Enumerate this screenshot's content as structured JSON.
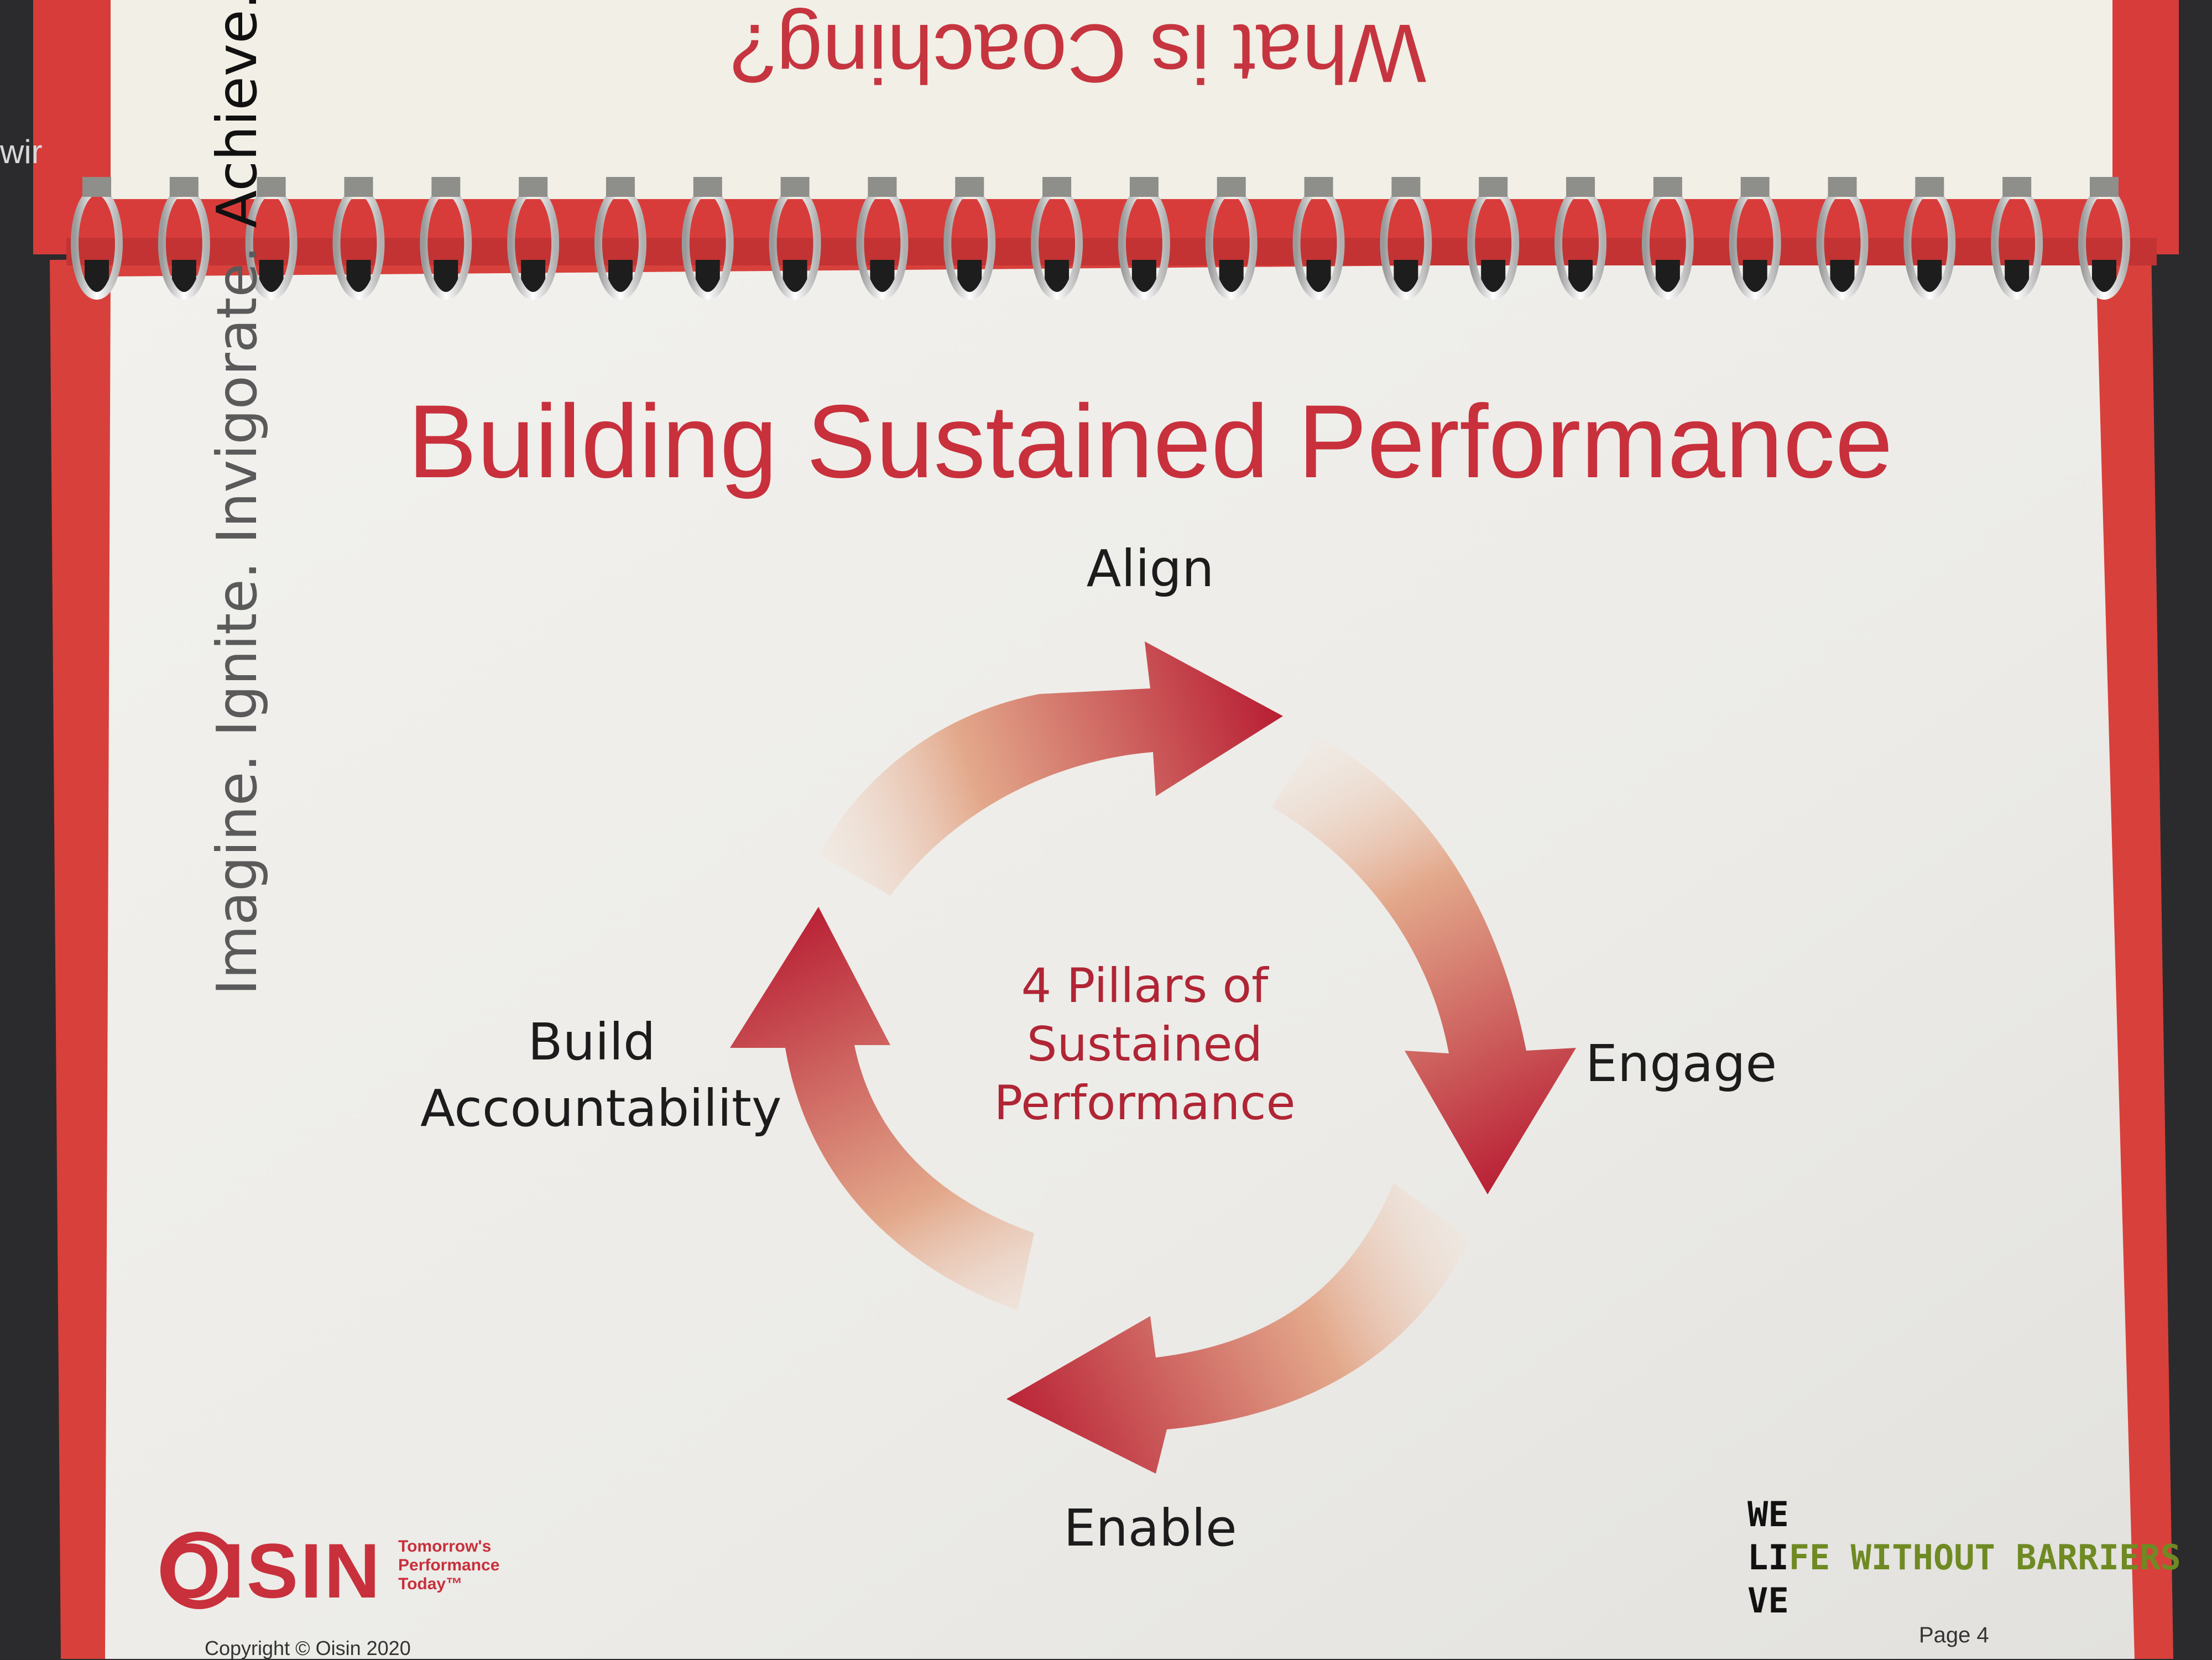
{
  "back_page": {
    "title": "What is Coaching?"
  },
  "edge_text": "wir",
  "page": {
    "title": "Building Sustained Performance",
    "tagline": {
      "part1": "Imagine.",
      "part2": "Ignite.",
      "part3": "Invigorate.",
      "part4": "Achieve."
    },
    "page_number": "Page 4"
  },
  "cycle": {
    "center_line1": "4 Pillars of",
    "center_line2": "Sustained",
    "center_line3": "Performance",
    "pillars": {
      "align": "Align",
      "engage": "Engage",
      "enable": "Enable",
      "build_line1": "Build",
      "build_line2": "Accountability"
    }
  },
  "logo": {
    "word": "OISIN",
    "tag_line1": "Tomorrow's",
    "tag_line2": "Performance",
    "tag_line3": "Today™",
    "copyright": "Copyright © Oisin 2020"
  },
  "we_live": {
    "line1": "WE",
    "line2_a": "LI",
    "line2_b": "FE WITHOUT BARRIERS",
    "line3": "VE"
  },
  "colors": {
    "accent_red": "#c8303c",
    "cover_red": "#d93a3a",
    "page_white": "#efeeea",
    "green": "#6f8a23"
  }
}
